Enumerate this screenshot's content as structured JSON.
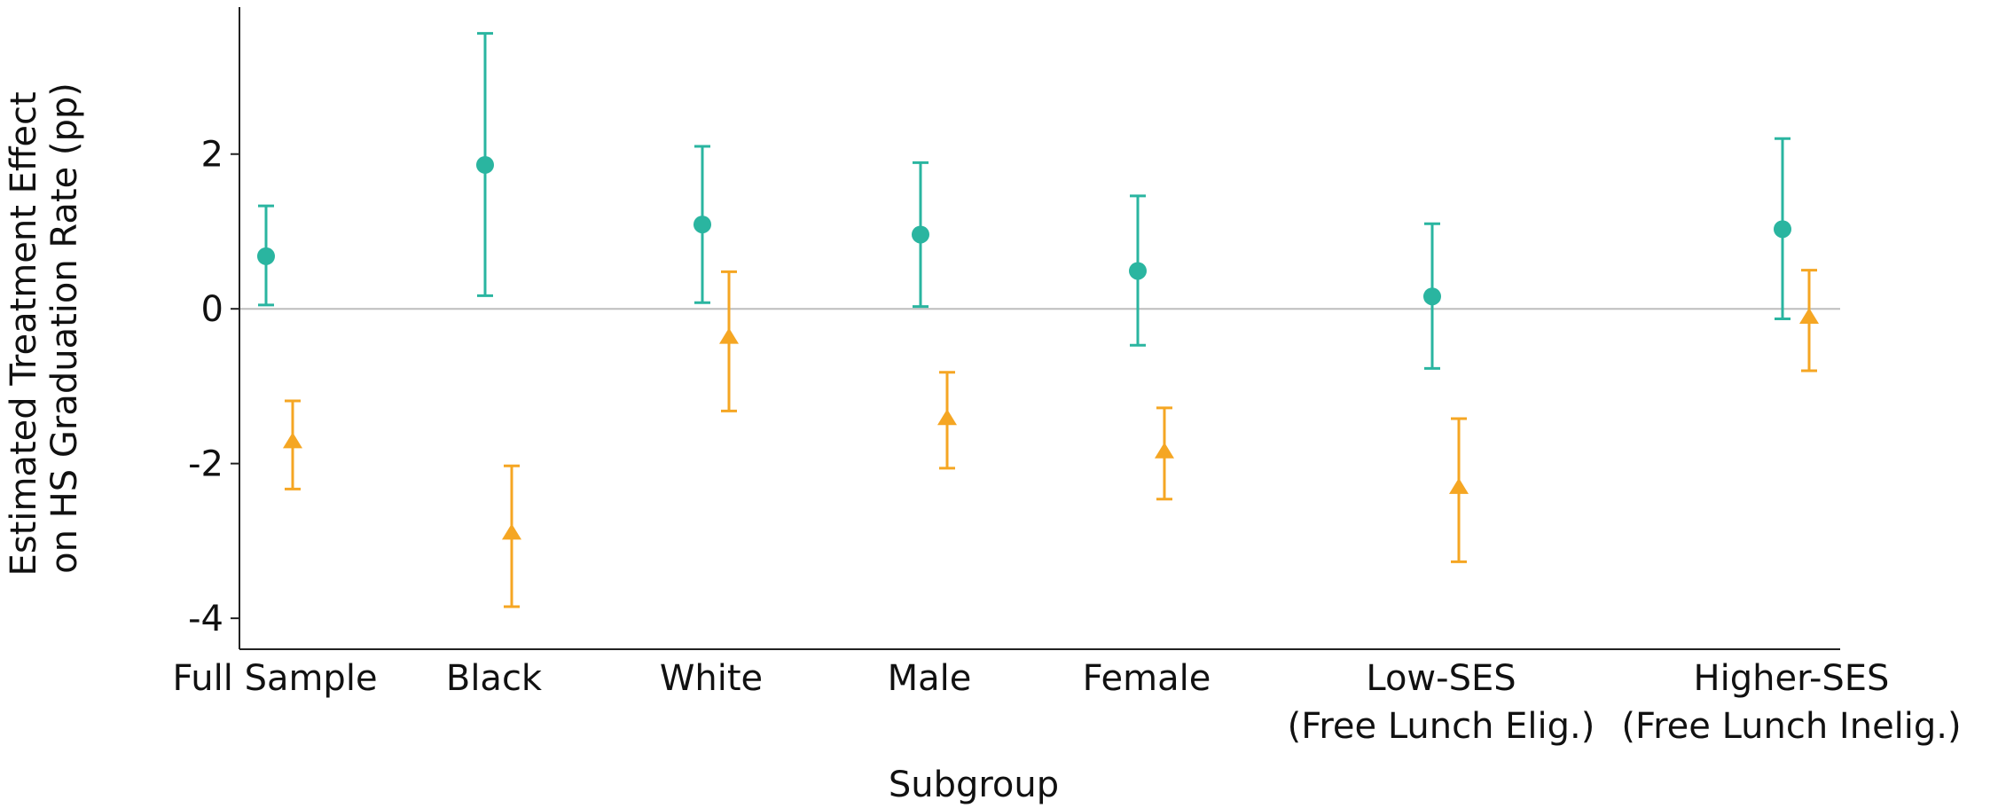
{
  "chart_data": {
    "type": "scatter",
    "xlabel": "Subgroup",
    "ylabel": [
      "Estimated Treatment Effect",
      "on HS Graduation Rate (pp)"
    ],
    "ylim": [
      -4.4,
      3.9
    ],
    "yticks": [
      -4,
      -2,
      0,
      2
    ],
    "reference_line_y": 0,
    "grid": false,
    "legend": "none",
    "categories": [
      [
        "Full Sample"
      ],
      [
        "Black"
      ],
      [
        "White"
      ],
      [
        "Male"
      ],
      [
        "Female"
      ],
      [
        "Low-SES",
        "(Free Lunch Elig.)"
      ],
      [
        "Higher-SES",
        "(Free Lunch Inelig.)"
      ]
    ],
    "series": [
      {
        "marker": "circle",
        "color": "#2ab5a0",
        "estimates": [
          0.68,
          1.86,
          1.09,
          0.96,
          0.49,
          0.16,
          1.03
        ],
        "lower": [
          0.05,
          0.17,
          0.08,
          0.03,
          -0.47,
          -0.77,
          -0.13
        ],
        "upper": [
          1.33,
          3.56,
          2.1,
          1.89,
          1.46,
          1.1,
          2.2
        ]
      },
      {
        "marker": "triangle",
        "color": "#f5a623",
        "estimates": [
          -1.72,
          -2.9,
          -0.37,
          -1.42,
          -1.85,
          -2.31,
          -0.11
        ],
        "lower": [
          -2.33,
          -3.85,
          -1.32,
          -2.06,
          -2.46,
          -3.27,
          -0.8
        ],
        "upper": [
          -1.19,
          -2.03,
          0.48,
          -0.82,
          -1.28,
          -1.42,
          0.5
        ]
      }
    ]
  }
}
